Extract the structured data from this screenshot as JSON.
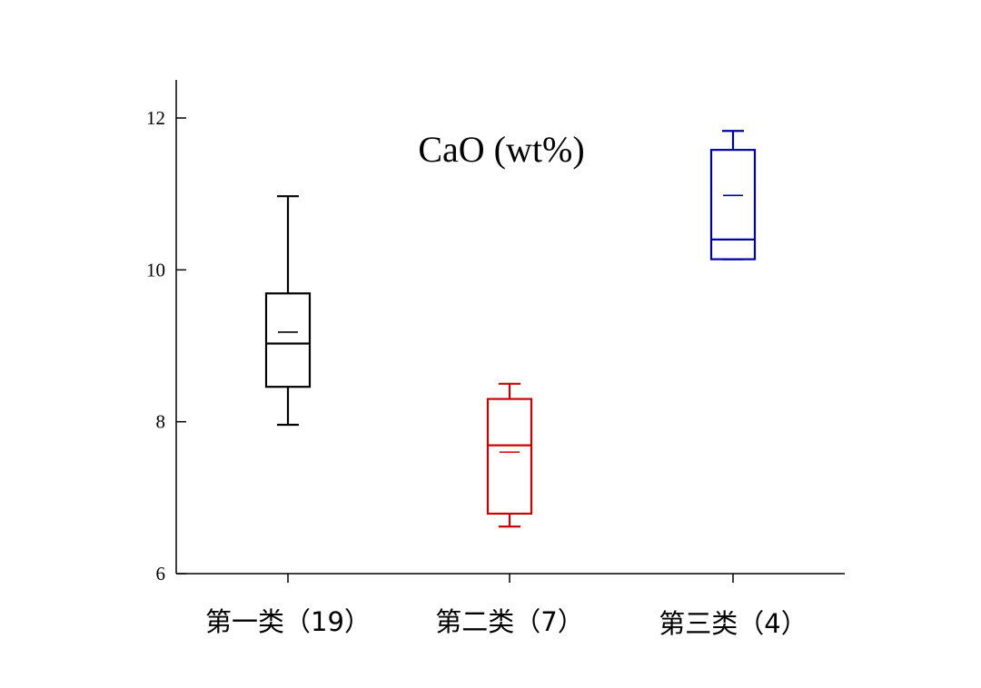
{
  "chart_data": {
    "type": "box",
    "title": "CaO (wt%)",
    "xlabel": "",
    "ylabel": "",
    "ylim": [
      6,
      12.5
    ],
    "yticks": [
      6,
      8,
      10,
      12
    ],
    "ytick_labels": [
      "6",
      "8",
      "10",
      "12"
    ],
    "grid": false,
    "categories": [
      "第一类（19）",
      "第二类（7）",
      "第三类（4）"
    ],
    "boxes": [
      {
        "category": "第一类（19）",
        "color": "#000000",
        "whisker_low": 7.96,
        "q1": 8.46,
        "median": 9.03,
        "mean": 9.18,
        "q3": 9.69,
        "whisker_high": 10.97
      },
      {
        "category": "第二类（7）",
        "color": "#cc0000",
        "whisker_low": 6.62,
        "q1": 6.79,
        "median": 7.69,
        "mean": 7.6,
        "q3": 8.3,
        "whisker_high": 8.5
      },
      {
        "category": "第三类（4）",
        "color": "#0000aa",
        "whisker_low": 10.14,
        "q1": 10.14,
        "median": 10.4,
        "mean": 10.98,
        "q3": 11.58,
        "whisker_high": 11.83
      }
    ]
  }
}
